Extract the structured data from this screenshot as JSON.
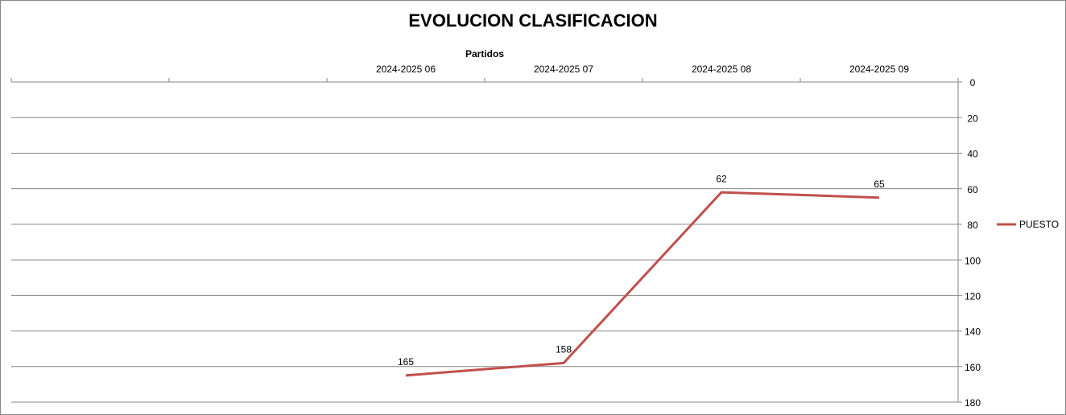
{
  "chart_data": {
    "type": "line",
    "title": "EVOLUCION CLASIFICACION",
    "x_label": "Partidos",
    "categories": [
      null,
      null,
      "2024-2025 06",
      "2024-2025 07",
      "2024-2025 08",
      "2024-2025 09"
    ],
    "series": [
      {
        "name": "PUESTO",
        "color": "#c0504d",
        "values": [
          null,
          null,
          165,
          158,
          62,
          65
        ]
      }
    ],
    "ylim": [
      0,
      180
    ],
    "yticks": [
      0,
      20,
      40,
      60,
      80,
      100,
      120,
      140,
      160,
      180
    ],
    "y_reversed": true,
    "y_axis_side": "right",
    "x_axis_side": "top",
    "grid": true,
    "legend": "right",
    "data_labels": true
  }
}
